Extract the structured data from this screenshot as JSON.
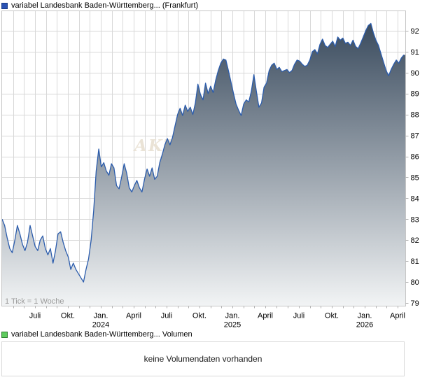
{
  "header": {
    "title": "variabel Landesbank Baden-Württemberg... (Frankfurt)"
  },
  "volume": {
    "legend": "variabel Landesbank Baden-Württemberg... Volumen",
    "empty_message": "keine Volumendaten vorhanden"
  },
  "chart_data": {
    "type": "area",
    "title": "variabel Landesbank Baden-Württemberg... (Frankfurt)",
    "tick_note": "1 Tick = 1 Woche",
    "watermark": "AKT",
    "ylabel": "",
    "xlabel": "",
    "ylim": [
      78.85,
      92.95
    ],
    "grid": true,
    "y_ticks": [
      92,
      91,
      90,
      89,
      88,
      87,
      86,
      85,
      84,
      83,
      82,
      81,
      80,
      79
    ],
    "x_ticks": [
      {
        "label": "Juli",
        "sub": "",
        "pos": 50
      },
      {
        "label": "Okt.",
        "sub": "",
        "pos": 97
      },
      {
        "label": "Jan.",
        "sub": "2024",
        "pos": 144
      },
      {
        "label": "April",
        "sub": "",
        "pos": 191
      },
      {
        "label": "Juli",
        "sub": "",
        "pos": 238
      },
      {
        "label": "Okt.",
        "sub": "",
        "pos": 285
      },
      {
        "label": "Jan.",
        "sub": "2025",
        "pos": 332
      },
      {
        "label": "April",
        "sub": "",
        "pos": 379
      },
      {
        "label": "Juli",
        "sub": "",
        "pos": 427
      },
      {
        "label": "Okt.",
        "sub": "",
        "pos": 474
      },
      {
        "label": "Jan.",
        "sub": "2026",
        "pos": 521
      },
      {
        "label": "April",
        "sub": "",
        "pos": 568
      }
    ],
    "series": [
      {
        "name": "variabel Landesbank Baden-Württemberg... (Frankfurt)",
        "interval": "1 Woche",
        "values": [
          83.0,
          82.7,
          82.1,
          81.6,
          81.4,
          82.0,
          82.7,
          82.3,
          81.8,
          81.5,
          81.9,
          82.7,
          82.2,
          81.7,
          81.5,
          82.0,
          82.2,
          81.6,
          81.3,
          81.6,
          80.9,
          81.5,
          82.3,
          82.4,
          81.9,
          81.5,
          81.2,
          80.6,
          80.9,
          80.6,
          80.4,
          80.2,
          80.0,
          80.6,
          81.1,
          82.0,
          83.4,
          85.3,
          86.35,
          85.5,
          85.7,
          85.3,
          85.1,
          85.65,
          85.45,
          84.6,
          84.45,
          85.0,
          85.65,
          85.2,
          84.5,
          84.3,
          84.6,
          84.85,
          84.5,
          84.3,
          84.9,
          85.4,
          85.05,
          85.45,
          84.9,
          85.05,
          85.7,
          86.1,
          86.55,
          86.85,
          86.55,
          86.9,
          87.45,
          88.0,
          88.3,
          87.95,
          88.45,
          88.15,
          88.35,
          88.0,
          88.55,
          89.45,
          88.95,
          88.7,
          89.5,
          89.0,
          89.35,
          89.05,
          89.65,
          90.1,
          90.45,
          90.65,
          90.6,
          90.1,
          89.55,
          89.0,
          88.5,
          88.2,
          87.95,
          88.5,
          88.7,
          88.6,
          89.1,
          89.9,
          89.1,
          88.35,
          88.55,
          89.3,
          89.5,
          90.1,
          90.35,
          90.45,
          90.15,
          90.25,
          90.05,
          90.1,
          90.15,
          90.0,
          90.1,
          90.4,
          90.6,
          90.55,
          90.4,
          90.3,
          90.35,
          90.6,
          91.0,
          91.1,
          90.9,
          91.35,
          91.6,
          91.3,
          91.2,
          91.35,
          91.5,
          91.25,
          91.7,
          91.55,
          91.65,
          91.4,
          91.45,
          91.3,
          91.55,
          91.25,
          91.15,
          91.4,
          91.7,
          92.0,
          92.25,
          92.35,
          91.9,
          91.55,
          91.3,
          90.9,
          90.5,
          90.1,
          89.85,
          90.15,
          90.4,
          90.6,
          90.45,
          90.7,
          90.85
        ]
      }
    ],
    "colors": {
      "line": "#2b5cac",
      "fill_top": "#3a4b5e",
      "fill_bottom": "#f2f4f5",
      "grid": "#d8d8d8",
      "frame": "#c6c6c6",
      "axis_tick": "#b0b0b0",
      "watermark": "#eae3d6",
      "legend_blue": "#2a52b4",
      "legend_green": "#5ecb5e"
    }
  }
}
